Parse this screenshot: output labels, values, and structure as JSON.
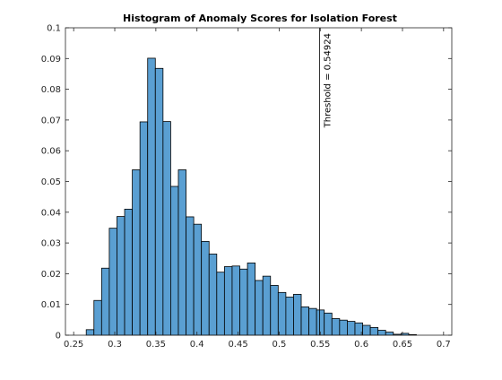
{
  "chart_data": {
    "type": "bar",
    "title": "Histogram of Anomaly Scores for Isolation Forest",
    "xlabel": "",
    "ylabel": "",
    "xlim": [
      0.24,
      0.71
    ],
    "ylim": [
      0,
      0.1
    ],
    "grid": false,
    "bin_width": 0.00934,
    "bin_edges": [
      0.2653,
      0.27464,
      0.28398,
      0.29332,
      0.30266,
      0.312,
      0.32134,
      0.33068,
      0.34002,
      0.34936,
      0.3587,
      0.36804,
      0.37738,
      0.38672,
      0.39606,
      0.4054,
      0.41474,
      0.42408,
      0.43342,
      0.44276,
      0.4521,
      0.46144,
      0.47078,
      0.48012,
      0.48946,
      0.4988,
      0.50814,
      0.51748,
      0.52682,
      0.53616,
      0.5455,
      0.55484,
      0.56418,
      0.57352,
      0.58286,
      0.5922,
      0.60154,
      0.61088,
      0.62022,
      0.62956,
      0.6389,
      0.64824,
      0.65758,
      0.66692
    ],
    "values": [
      0.0018,
      0.0113,
      0.0218,
      0.0348,
      0.0386,
      0.041,
      0.0538,
      0.0694,
      0.0901,
      0.0868,
      0.0695,
      0.0484,
      0.0538,
      0.0385,
      0.0361,
      0.0305,
      0.0264,
      0.0205,
      0.0223,
      0.0225,
      0.0215,
      0.0235,
      0.0178,
      0.0192,
      0.0162,
      0.0139,
      0.0124,
      0.0133,
      0.0092,
      0.0087,
      0.0082,
      0.0072,
      0.0054,
      0.0049,
      0.0045,
      0.004,
      0.0032,
      0.0025,
      0.0016,
      0.001,
      0.0003,
      0.0006,
      0.0002
    ],
    "x_ticks": [
      0.25,
      0.3,
      0.35,
      0.4,
      0.45,
      0.5,
      0.55,
      0.6,
      0.65,
      0.7
    ],
    "x_tick_labels": [
      "0.25",
      "0.3",
      "0.35",
      "0.4",
      "0.45",
      "0.5",
      "0.55",
      "0.6",
      "0.65",
      "0.7"
    ],
    "y_ticks": [
      0,
      0.01,
      0.02,
      0.03,
      0.04,
      0.05,
      0.06,
      0.07,
      0.08,
      0.09,
      0.1
    ],
    "y_tick_labels": [
      "0",
      "0.01",
      "0.02",
      "0.03",
      "0.04",
      "0.05",
      "0.06",
      "0.07",
      "0.08",
      "0.09",
      "0.1"
    ],
    "threshold": {
      "value": 0.54924,
      "label": "Threshold = 0.54924"
    },
    "colors": {
      "bar_fill": "#5a9fd2",
      "bar_edge": "#000000",
      "axis": "#262626",
      "threshold_line": "#000000"
    }
  }
}
